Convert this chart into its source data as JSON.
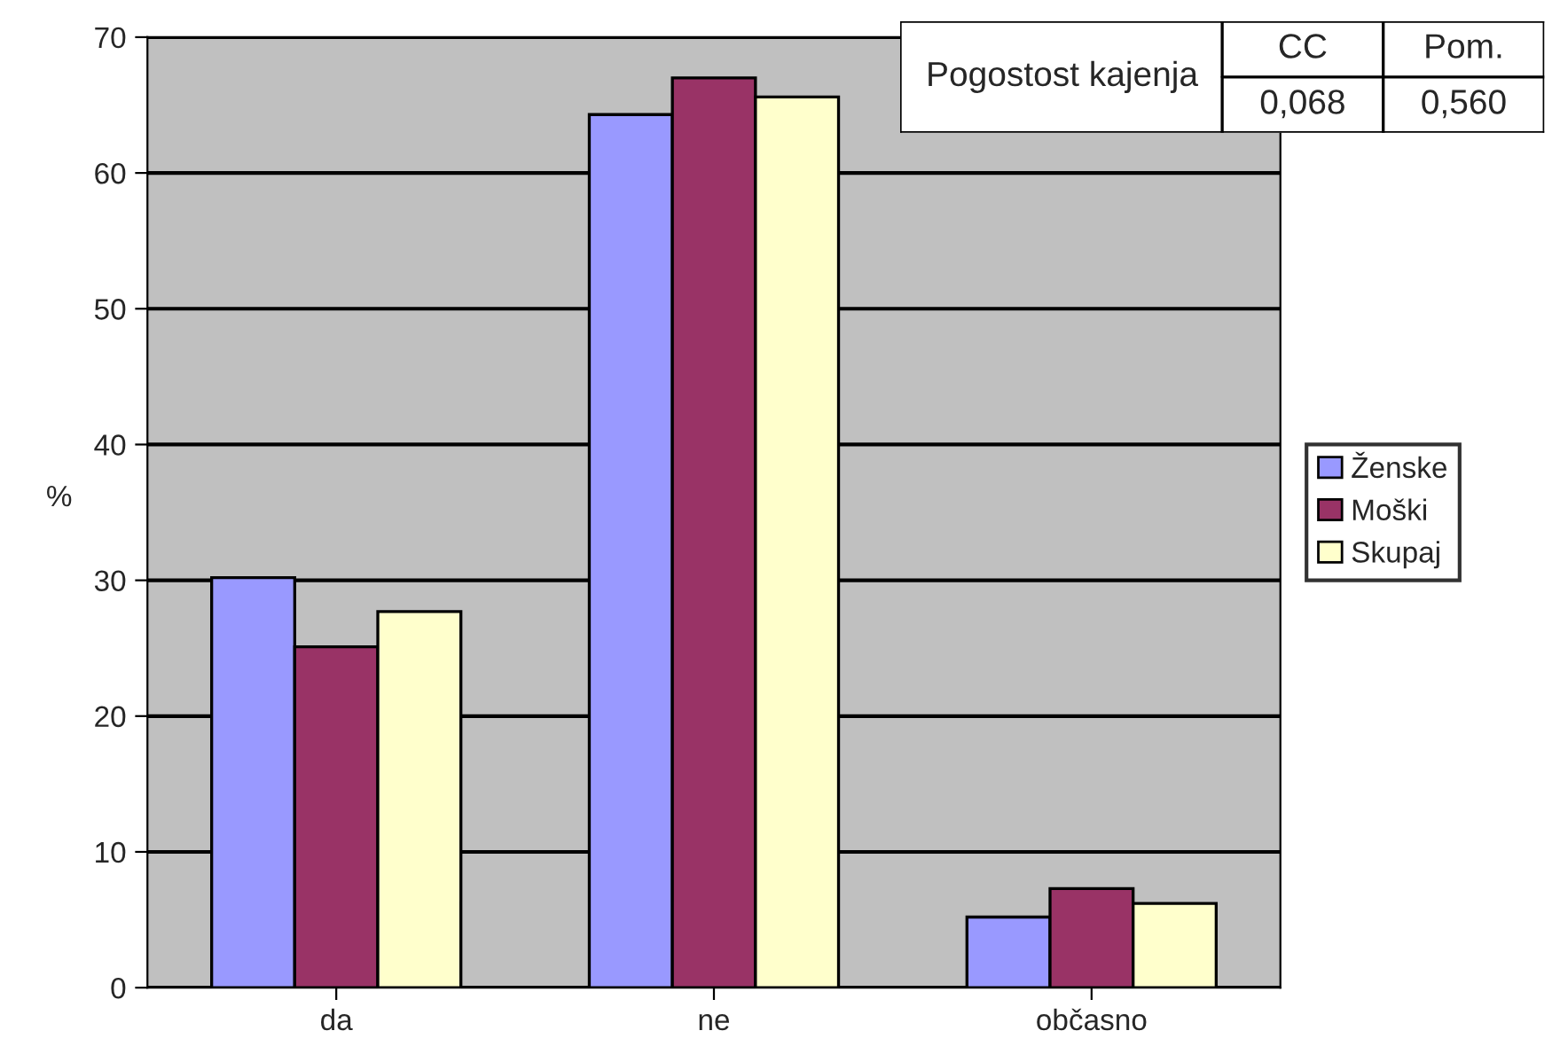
{
  "chart_data": {
    "type": "bar",
    "ylabel": "%",
    "categories": [
      "da",
      "ne",
      "občasno"
    ],
    "series": [
      {
        "name": "Ženske",
        "color": "#9999ff",
        "values": [
          30.2,
          64.3,
          5.2
        ]
      },
      {
        "name": "Moški",
        "color": "#993366",
        "values": [
          25.1,
          67.0,
          7.3
        ]
      },
      {
        "name": "Skupaj",
        "color": "#ffffcc",
        "values": [
          27.7,
          65.6,
          6.2
        ]
      }
    ],
    "ylim": [
      0,
      70
    ],
    "yticks": [
      0,
      10,
      20,
      30,
      40,
      50,
      60,
      70
    ],
    "grid": "y",
    "legend": "right",
    "annotations": [
      "Pogostost kajenja",
      "CC",
      "Pom.",
      "0,068",
      "0,560"
    ]
  }
}
